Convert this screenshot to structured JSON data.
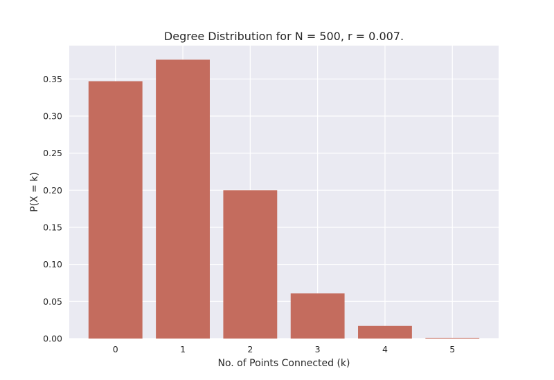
{
  "chart_data": {
    "type": "bar",
    "title": "Degree Distribution for N = 500, r = 0.007.",
    "xlabel": "No. of Points Connected (k)",
    "ylabel": "P(X = k)",
    "categories": [
      "0",
      "1",
      "2",
      "3",
      "4",
      "5"
    ],
    "values": [
      0.347,
      0.376,
      0.2,
      0.061,
      0.017,
      0.001
    ],
    "ylim": [
      0,
      0.395
    ],
    "yticks": [
      "0.00",
      "0.05",
      "0.10",
      "0.15",
      "0.20",
      "0.25",
      "0.30",
      "0.35"
    ],
    "grid": true,
    "colors": {
      "bar": "#c46c5e",
      "plot_background": "#eaeaf2",
      "grid": "#ffffff"
    }
  }
}
